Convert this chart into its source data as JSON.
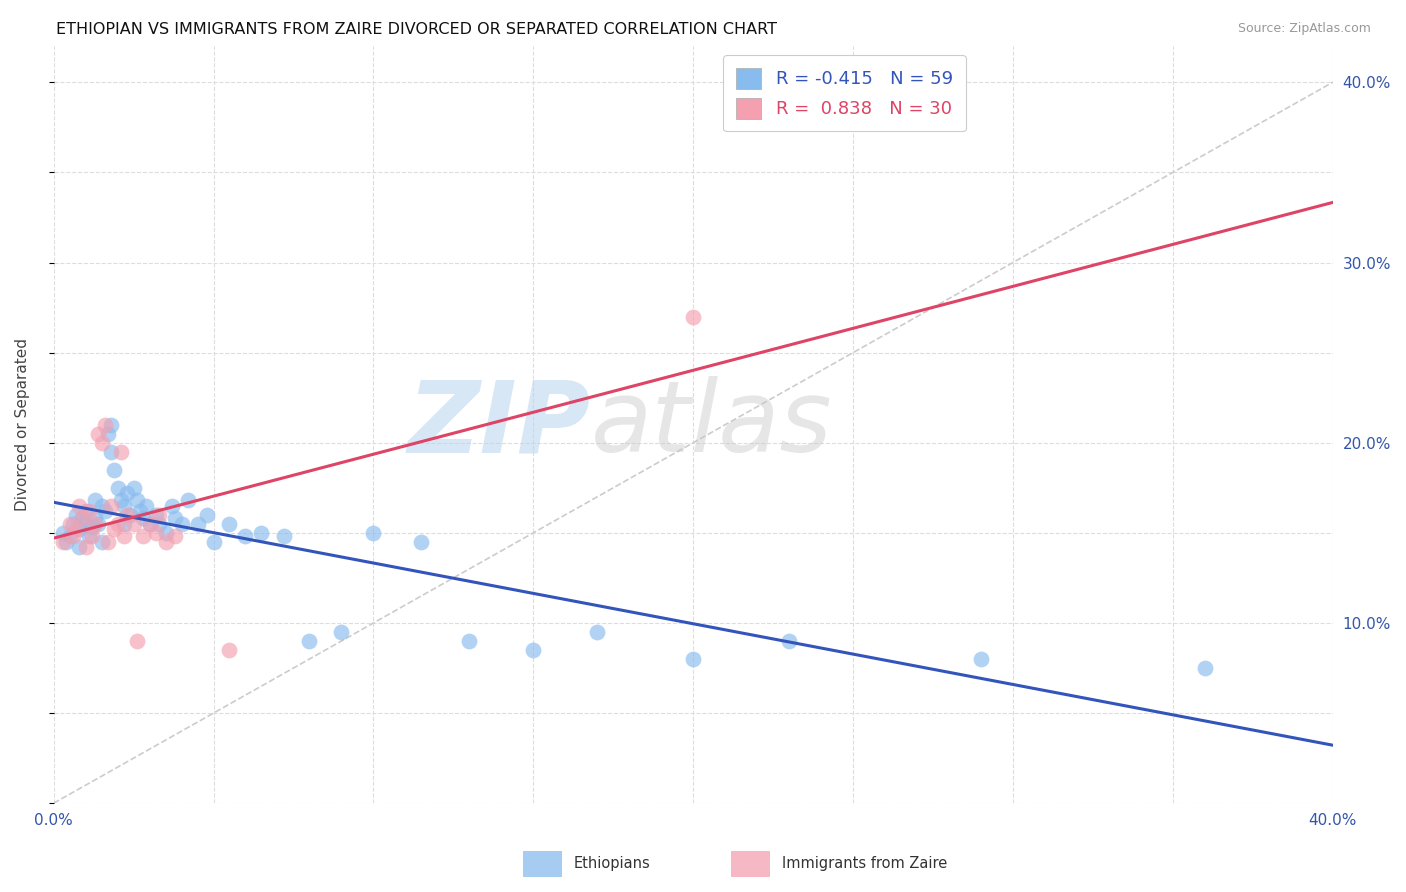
{
  "title": "ETHIOPIAN VS IMMIGRANTS FROM ZAIRE DIVORCED OR SEPARATED CORRELATION CHART",
  "source": "Source: ZipAtlas.com",
  "ylabel": "Divorced or Separated",
  "xlim": [
    0.0,
    0.4
  ],
  "ylim": [
    0.0,
    0.42
  ],
  "xtick_positions": [
    0.0,
    0.05,
    0.1,
    0.15,
    0.2,
    0.25,
    0.3,
    0.35,
    0.4
  ],
  "xtick_labels": [
    "0.0%",
    "",
    "",
    "",
    "",
    "",
    "",
    "",
    "40.0%"
  ],
  "ytick_positions": [
    0.0,
    0.05,
    0.1,
    0.15,
    0.2,
    0.25,
    0.3,
    0.35,
    0.4
  ],
  "ytick_labels_right": [
    "",
    "",
    "10.0%",
    "",
    "20.0%",
    "",
    "30.0%",
    "",
    "40.0%"
  ],
  "grid_color": "#dddddd",
  "background_color": "#ffffff",
  "watermark_zip": "ZIP",
  "watermark_atlas": "atlas",
  "ethiopians_color": "#88bbee",
  "zaire_color": "#f4a0b0",
  "trendline_ethiopians_color": "#3355bb",
  "trendline_zaire_color": "#dd4466",
  "diagonal_color": "#cccccc",
  "legend_eth_R": "-0.415",
  "legend_eth_N": "59",
  "legend_zaire_R": "0.838",
  "legend_zaire_N": "30",
  "ethiopians_x": [
    0.003,
    0.004,
    0.005,
    0.006,
    0.007,
    0.008,
    0.008,
    0.009,
    0.01,
    0.01,
    0.011,
    0.012,
    0.013,
    0.013,
    0.014,
    0.015,
    0.015,
    0.016,
    0.017,
    0.018,
    0.018,
    0.019,
    0.02,
    0.021,
    0.022,
    0.022,
    0.023,
    0.024,
    0.025,
    0.026,
    0.027,
    0.028,
    0.029,
    0.03,
    0.032,
    0.033,
    0.035,
    0.037,
    0.038,
    0.04,
    0.042,
    0.045,
    0.048,
    0.05,
    0.055,
    0.06,
    0.065,
    0.072,
    0.08,
    0.09,
    0.1,
    0.115,
    0.13,
    0.15,
    0.17,
    0.2,
    0.23,
    0.29,
    0.36
  ],
  "ethiopians_y": [
    0.15,
    0.145,
    0.148,
    0.155,
    0.16,
    0.152,
    0.142,
    0.158,
    0.155,
    0.162,
    0.148,
    0.153,
    0.158,
    0.168,
    0.155,
    0.165,
    0.145,
    0.162,
    0.205,
    0.21,
    0.195,
    0.185,
    0.175,
    0.168,
    0.165,
    0.155,
    0.172,
    0.16,
    0.175,
    0.168,
    0.162,
    0.158,
    0.165,
    0.155,
    0.16,
    0.155,
    0.15,
    0.165,
    0.158,
    0.155,
    0.168,
    0.155,
    0.16,
    0.145,
    0.155,
    0.148,
    0.15,
    0.148,
    0.09,
    0.095,
    0.15,
    0.145,
    0.09,
    0.085,
    0.095,
    0.08,
    0.09,
    0.08,
    0.075
  ],
  "zaire_x": [
    0.003,
    0.005,
    0.006,
    0.007,
    0.008,
    0.009,
    0.01,
    0.011,
    0.012,
    0.013,
    0.014,
    0.015,
    0.016,
    0.017,
    0.018,
    0.019,
    0.02,
    0.021,
    0.022,
    0.023,
    0.025,
    0.026,
    0.028,
    0.03,
    0.032,
    0.033,
    0.035,
    0.038,
    0.055,
    0.2
  ],
  "zaire_y": [
    0.145,
    0.155,
    0.148,
    0.152,
    0.165,
    0.158,
    0.142,
    0.162,
    0.148,
    0.155,
    0.205,
    0.2,
    0.21,
    0.145,
    0.165,
    0.152,
    0.155,
    0.195,
    0.148,
    0.16,
    0.155,
    0.09,
    0.148,
    0.155,
    0.15,
    0.16,
    0.145,
    0.148,
    0.085,
    0.27
  ]
}
